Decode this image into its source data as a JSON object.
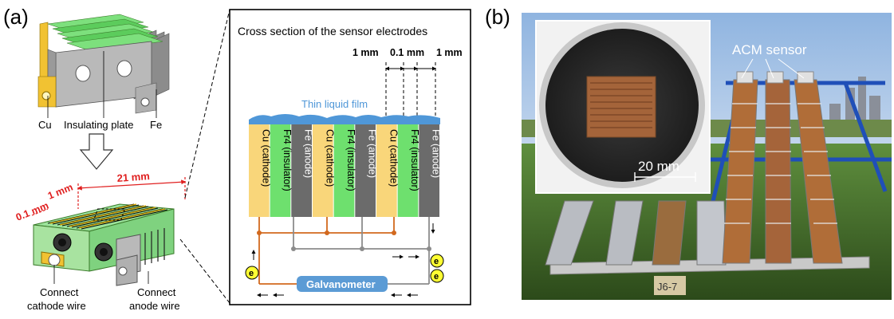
{
  "panel_a": {
    "label": "(a)",
    "top_labels": {
      "cu": "Cu",
      "insulating": "Insulating plate",
      "fe": "Fe"
    },
    "dimensions": {
      "d1": "0.1 mm",
      "d2": "1 mm",
      "width": "21 mm"
    },
    "bottom_labels": {
      "cathode_1": "Connect",
      "cathode_2": "cathode wire",
      "anode_1": "Connect",
      "anode_2": "anode wire"
    }
  },
  "cross_section": {
    "title": "Cross section of the sensor electrodes",
    "dim_1": "1 mm",
    "dim_2": "0.1 mm",
    "dim_3": "1 mm",
    "film_label": "Thin liquid film",
    "strips": [
      {
        "text": "Cu (cathode)",
        "color": "#f9d67a",
        "text_color": "#000000"
      },
      {
        "text": "Fr4 (insulator)",
        "color": "#6ee06e",
        "text_color": "#000000"
      },
      {
        "text": "Fe (anode)",
        "color": "#6b6b6b",
        "text_color": "#ffffff"
      },
      {
        "text": "Cu (cathode)",
        "color": "#f9d67a",
        "text_color": "#000000"
      },
      {
        "text": "Fr4 (insulator)",
        "color": "#6ee06e",
        "text_color": "#000000"
      },
      {
        "text": "Fe (anode)",
        "color": "#6b6b6b",
        "text_color": "#ffffff"
      },
      {
        "text": "Cu (cathode)",
        "color": "#f9d67a",
        "text_color": "#000000"
      },
      {
        "text": "Fr4 (insulator)",
        "color": "#6ee06e",
        "text_color": "#000000"
      },
      {
        "text": "Fe (anode)",
        "color": "#6b6b6b",
        "text_color": "#ffffff"
      }
    ],
    "galvanometer": "Galvanometer",
    "electron": "e"
  },
  "panel_b": {
    "label": "(b)",
    "sensor_label": "ACM sensor",
    "scale": "20 mm",
    "tag": "J6-7"
  },
  "colors": {
    "cathode_wire": "#d2691e",
    "anode_wire": "#8c8c8c",
    "film": "#4f97d8",
    "galvanometer": "#5b9bd5",
    "dimension_red": "#e02020",
    "electron_fill": "#ffff33"
  }
}
